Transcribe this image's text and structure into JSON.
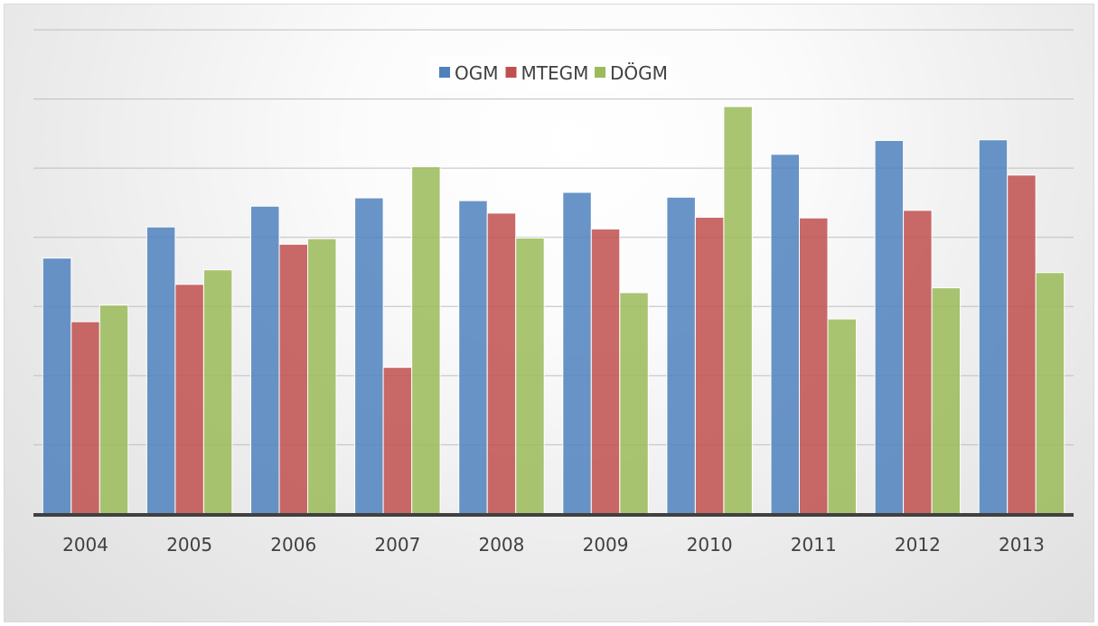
{
  "chart_data": {
    "type": "bar",
    "categories": [
      "2004",
      "2005",
      "2006",
      "2007",
      "2008",
      "2009",
      "2010",
      "2011",
      "2012",
      "2013"
    ],
    "series": [
      {
        "name": "OGM",
        "color": "#4F81BD",
        "values": [
          3.7,
          4.15,
          4.45,
          4.57,
          4.53,
          4.65,
          4.58,
          5.2,
          5.4,
          5.41
        ]
      },
      {
        "name": "MTEGM",
        "color": "#C0504D",
        "values": [
          2.78,
          3.32,
          3.9,
          2.12,
          4.35,
          4.12,
          4.29,
          4.28,
          4.39,
          4.9
        ]
      },
      {
        "name": "DÖGM",
        "color": "#9BBB59",
        "values": [
          3.02,
          3.53,
          3.98,
          5.02,
          3.99,
          3.2,
          5.89,
          2.82,
          3.27,
          3.49
        ]
      }
    ],
    "ylim": [
      0,
      7
    ],
    "grid": true,
    "legend_position": "top"
  }
}
